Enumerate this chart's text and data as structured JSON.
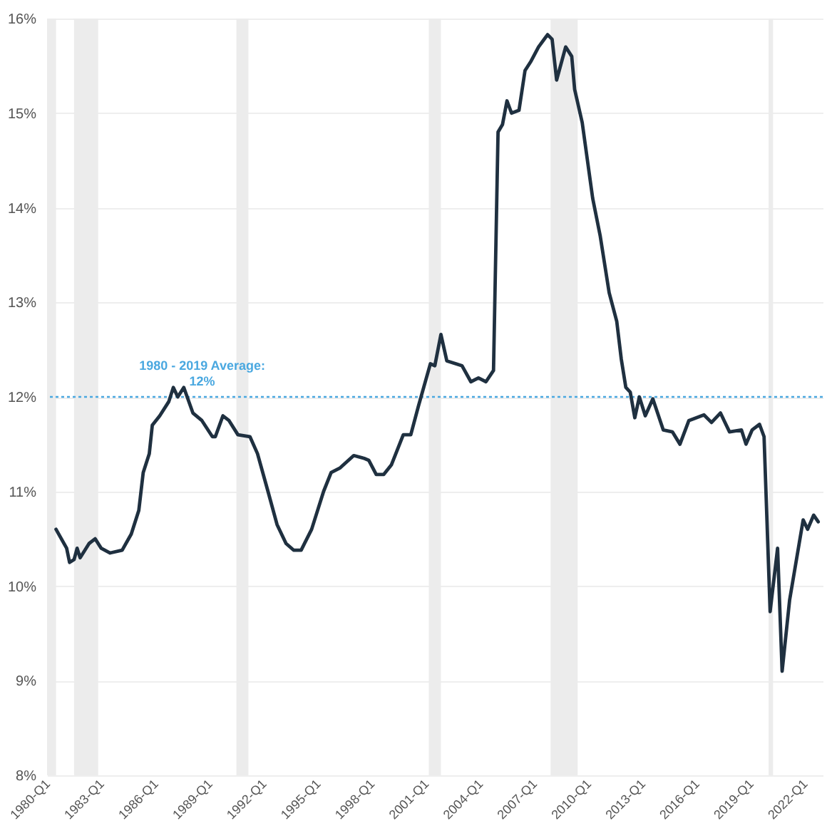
{
  "chart_data": {
    "type": "line",
    "x": [
      "1980-07",
      "1981-02",
      "1981-04",
      "1981-07",
      "1981-09",
      "1981-11",
      "1982-05",
      "1982-09",
      "1983-01",
      "1983-07",
      "1984-03",
      "1984-09",
      "1985-02",
      "1985-05",
      "1985-09",
      "1985-11",
      "1986-04",
      "1986-10",
      "1987-01",
      "1987-04",
      "1987-08",
      "1988-02",
      "1988-08",
      "1989-03",
      "1989-05",
      "1989-10",
      "1990-02",
      "1990-08",
      "1991-04",
      "1991-09",
      "1992-04",
      "1992-10",
      "1993-04",
      "1993-09",
      "1994-02",
      "1994-09",
      "1995-05",
      "1995-10",
      "1996-04",
      "1997-01",
      "1997-08",
      "1997-11",
      "1998-04",
      "1998-09",
      "1999-02",
      "1999-10",
      "2000-03",
      "2000-08",
      "2001-04",
      "2001-07",
      "2001-11",
      "2002-03",
      "2003-01",
      "2003-07",
      "2003-12",
      "2004-05",
      "2004-10",
      "2005-01",
      "2005-04",
      "2005-07",
      "2005-10",
      "2006-03",
      "2006-07",
      "2006-11",
      "2007-04",
      "2007-10",
      "2008-01",
      "2008-04",
      "2008-10",
      "2009-02",
      "2009-04",
      "2009-09",
      "2010-04",
      "2010-09",
      "2011-03",
      "2011-08",
      "2011-11",
      "2012-02",
      "2012-05",
      "2012-08",
      "2012-11",
      "2013-03",
      "2013-08",
      "2014-03",
      "2014-09",
      "2015-02",
      "2015-08",
      "2016-06",
      "2016-11",
      "2017-05",
      "2017-11",
      "2018-07",
      "2018-10",
      "2019-02",
      "2019-07",
      "2019-10",
      "2020-02",
      "2020-07",
      "2020-10",
      "2021-03",
      "2021-12",
      "2022-03",
      "2022-07",
      "2022-10"
    ],
    "series": [
      {
        "color": "#1f3040",
        "values": [
          10.6,
          10.4,
          10.25,
          10.28,
          10.4,
          10.3,
          10.45,
          10.5,
          10.4,
          10.35,
          10.38,
          10.55,
          10.8,
          11.2,
          11.4,
          11.7,
          11.8,
          11.95,
          12.1,
          12.0,
          12.1,
          11.83,
          11.75,
          11.58,
          11.58,
          11.8,
          11.75,
          11.6,
          11.58,
          11.4,
          11.0,
          10.65,
          10.45,
          10.38,
          10.38,
          10.6,
          11.0,
          11.2,
          11.25,
          11.38,
          11.35,
          11.33,
          11.18,
          11.18,
          11.28,
          11.6,
          11.6,
          11.9,
          12.35,
          12.33,
          12.66,
          12.38,
          12.33,
          12.16,
          12.2,
          12.16,
          12.28,
          14.8,
          14.88,
          15.13,
          15.0,
          15.03,
          15.45,
          15.55,
          15.7,
          15.83,
          15.78,
          15.35,
          15.7,
          15.6,
          15.25,
          14.9,
          14.1,
          13.7,
          13.1,
          12.8,
          12.4,
          12.1,
          12.05,
          11.78,
          12.0,
          11.8,
          11.98,
          11.65,
          11.63,
          11.5,
          11.75,
          11.81,
          11.73,
          11.83,
          11.63,
          11.65,
          11.5,
          11.65,
          11.71,
          11.58,
          9.73,
          10.4,
          9.1,
          9.85,
          10.7,
          10.6,
          10.75,
          10.68
        ]
      }
    ],
    "xlim": [
      "1980-01",
      "2023-01"
    ],
    "xticks": [
      {
        "value": "1980-01",
        "label": "1980-Q1"
      },
      {
        "value": "1983-01",
        "label": "1983-Q1"
      },
      {
        "value": "1986-01",
        "label": "1986-Q1"
      },
      {
        "value": "1989-01",
        "label": "1989-Q1"
      },
      {
        "value": "1992-01",
        "label": "1992-Q1"
      },
      {
        "value": "1995-01",
        "label": "1995-Q1"
      },
      {
        "value": "1998-01",
        "label": "1998-Q1"
      },
      {
        "value": "2001-01",
        "label": "2001-Q1"
      },
      {
        "value": "2004-01",
        "label": "2004-Q1"
      },
      {
        "value": "2007-01",
        "label": "2007-Q1"
      },
      {
        "value": "2010-01",
        "label": "2010-Q1"
      },
      {
        "value": "2013-01",
        "label": "2013-Q1"
      },
      {
        "value": "2016-01",
        "label": "2016-Q1"
      },
      {
        "value": "2019-01",
        "label": "2019-Q1"
      },
      {
        "value": "2022-01",
        "label": "2022-Q1"
      }
    ],
    "ylim": [
      8,
      16
    ],
    "yticks": [
      {
        "value": 8,
        "label": "8%"
      },
      {
        "value": 9,
        "label": "9%"
      },
      {
        "value": 10,
        "label": "10%"
      },
      {
        "value": 11,
        "label": "11%"
      },
      {
        "value": 12,
        "label": "12%"
      },
      {
        "value": 13,
        "label": "13%"
      },
      {
        "value": 14,
        "label": "14%"
      },
      {
        "value": 15,
        "label": "15%"
      },
      {
        "value": 16,
        "label": "16%"
      }
    ],
    "grid": "y",
    "line_style": "solid",
    "ref_lines": [
      {
        "axis": "y",
        "value": 12,
        "label": "1980 - 2019 Average:\n12%",
        "color": "#4aa8e0",
        "line_style": "dotted"
      }
    ],
    "bands": [
      {
        "axis": "x",
        "from": "1980-01",
        "to": "1980-07",
        "color": "#ececec"
      },
      {
        "axis": "x",
        "from": "1981-07",
        "to": "1982-11",
        "color": "#ececec"
      },
      {
        "axis": "x",
        "from": "1990-07",
        "to": "1991-03",
        "color": "#ececec"
      },
      {
        "axis": "x",
        "from": "2001-03",
        "to": "2001-11",
        "color": "#ececec"
      },
      {
        "axis": "x",
        "from": "2007-12",
        "to": "2009-06",
        "color": "#ececec"
      },
      {
        "axis": "x",
        "from": "2020-01",
        "to": "2020-04",
        "color": "#ececec"
      }
    ]
  }
}
